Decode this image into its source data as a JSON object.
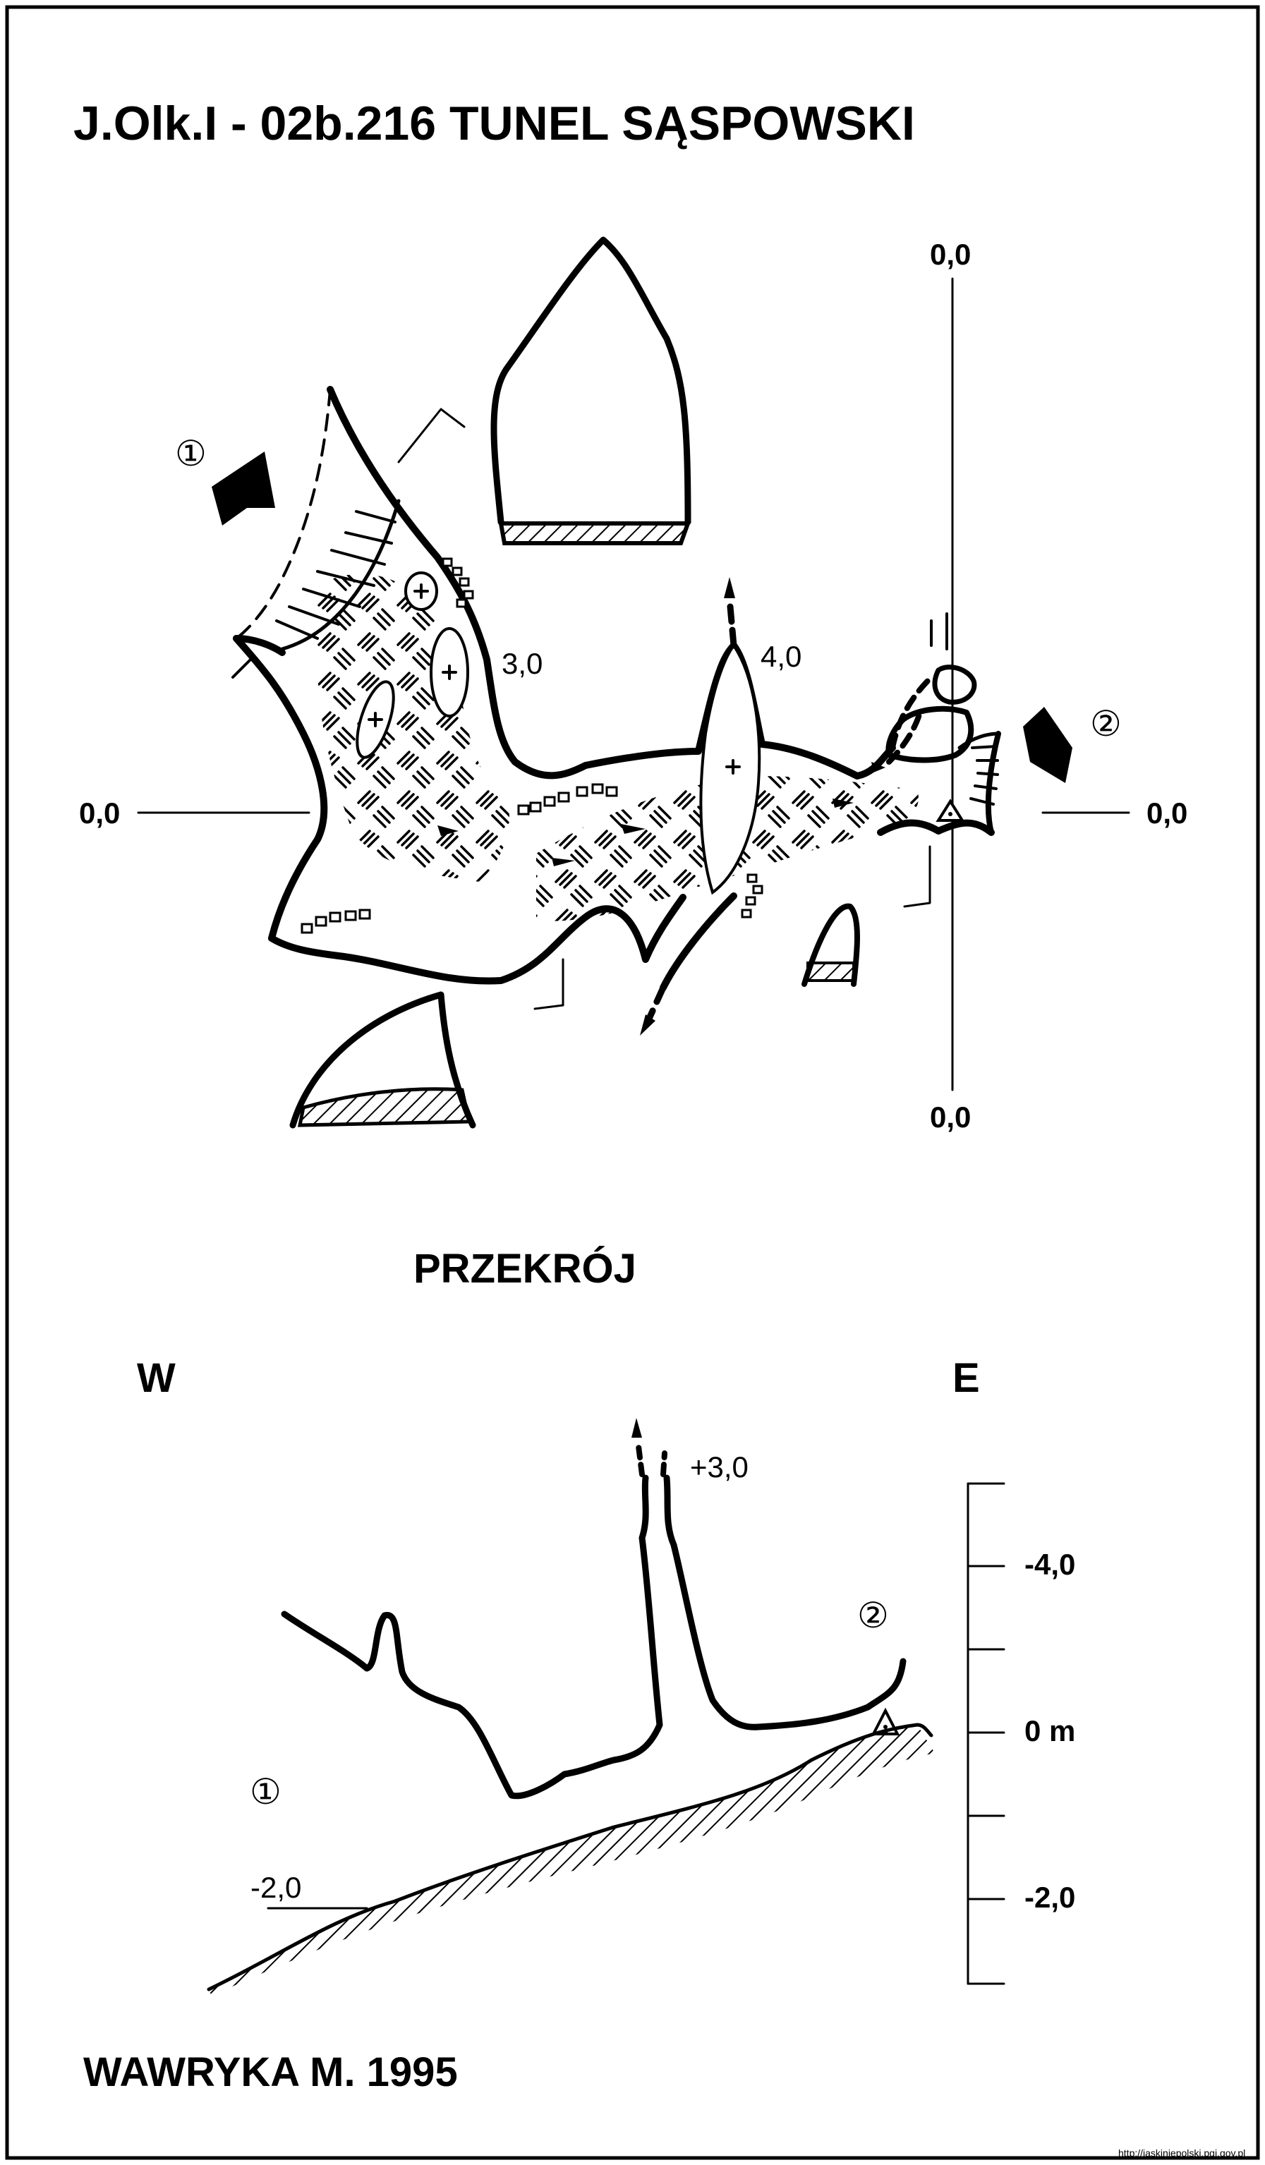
{
  "title": "J.Olk.I - 02b.216  TUNEL SĄSPOWSKI",
  "plan": {
    "datum_top": "0,0",
    "datum_bottom": "0,0",
    "datum_left": "0,0",
    "datum_right": "0,0",
    "height_a": "3,0",
    "height_b": "4,0",
    "entrance_1": "①",
    "entrance_2": "②"
  },
  "section": {
    "heading": "PRZEKRÓJ",
    "west": "W",
    "east": "E",
    "top_height": "+3,0",
    "floor_depth": "-2,0",
    "entrance_1": "①",
    "entrance_2": "②",
    "scale": [
      "-4,0",
      "0 m",
      "-2,0"
    ]
  },
  "author": "WAWRYKA M. 1995",
  "credit": "http://jaskiniepolski.pgi.gov.pl"
}
